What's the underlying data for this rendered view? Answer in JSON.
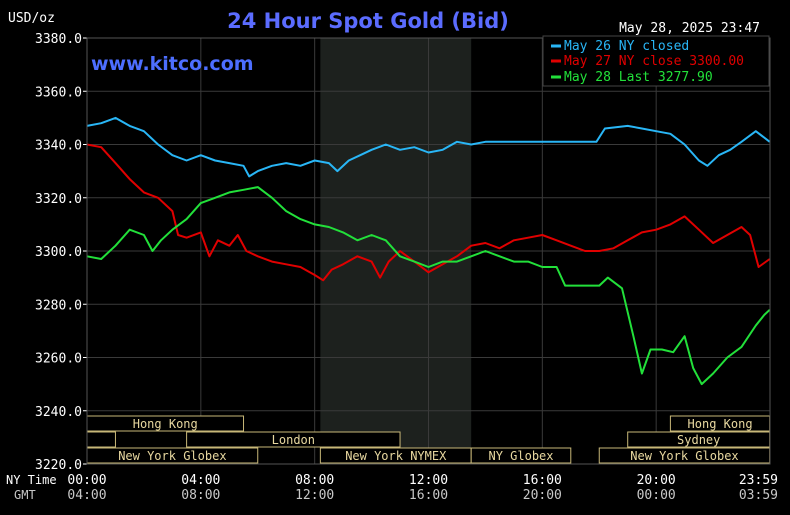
{
  "colors": {
    "background": "#000000",
    "nyhours": "#1d211e",
    "grid": "#3a3a3a",
    "axis_text": "#ffffff",
    "title": "#5b6cff",
    "brand": "#4d6eff",
    "may26": "#29b6f6",
    "may27": "#e00000",
    "may28": "#22e03a",
    "session_text": "#e8d8a0",
    "session_border": "#c8b878",
    "gmt_text": "#c8c8c8"
  },
  "header": {
    "unit": "USD/oz",
    "title": "24 Hour Spot Gold (Bid)",
    "timestamp": "May 28, 2025 23:47",
    "watermark": "www.kitco.com"
  },
  "axis": {
    "row1_label": "NY Time",
    "row2_label": "GMT",
    "ny_ticks": [
      "00:00",
      "04:00",
      "08:00",
      "12:00",
      "16:00",
      "20:00",
      "23:59"
    ],
    "gmt_ticks": [
      "04:00",
      "08:00",
      "12:00",
      "16:00",
      "20:00",
      "00:00",
      "03:59"
    ]
  },
  "sessions": [
    {
      "name": "Hong Kong",
      "start": 0,
      "end": 5.5,
      "row": 0
    },
    {
      "name": "Hong Kong",
      "start": 20.5,
      "end": 23.99,
      "row": 0
    },
    {
      "name": "",
      "start": 0,
      "end": 1.0,
      "row": 1
    },
    {
      "name": "London",
      "start": 3.5,
      "end": 11.0,
      "row": 1
    },
    {
      "name": "Sydney",
      "start": 19.0,
      "end": 23.99,
      "row": 1
    },
    {
      "name": "New York Globex",
      "start": 0,
      "end": 6.0,
      "row": 2
    },
    {
      "name": "New York NYMEX",
      "start": 8.2,
      "end": 13.5,
      "row": 2
    },
    {
      "name": "NY Globex",
      "start": 13.5,
      "end": 17.0,
      "row": 2
    },
    {
      "name": "New York Globex",
      "start": 18.0,
      "end": 23.99,
      "row": 2
    }
  ],
  "chart_data": {
    "type": "line",
    "title": "24 Hour Spot Gold (Bid)",
    "ylabel": "USD/oz",
    "xlabel": "NY Time",
    "ylim": [
      3220,
      3380
    ],
    "xlim": [
      0,
      24
    ],
    "y_ticks": [
      "3220.0",
      "3240.0",
      "3260.0",
      "3280.0",
      "3300.0",
      "3320.0",
      "3340.0",
      "3360.0",
      "3380.0"
    ],
    "grid": true,
    "legend_position": "top-right",
    "ny_hours_shaded": [
      8.2,
      13.5
    ],
    "series": [
      {
        "name": "May 26 NY closed",
        "points": [
          [
            0,
            3347
          ],
          [
            0.5,
            3348
          ],
          [
            1.0,
            3350
          ],
          [
            1.5,
            3347
          ],
          [
            2.0,
            3345
          ],
          [
            2.5,
            3340
          ],
          [
            3.0,
            3336
          ],
          [
            3.5,
            3334
          ],
          [
            4.0,
            3336
          ],
          [
            4.5,
            3334
          ],
          [
            5.0,
            3333
          ],
          [
            5.5,
            3332
          ],
          [
            5.7,
            3328
          ],
          [
            6.0,
            3330
          ],
          [
            6.5,
            3332
          ],
          [
            7.0,
            3333
          ],
          [
            7.5,
            3332
          ],
          [
            8.0,
            3334
          ],
          [
            8.5,
            3333
          ],
          [
            8.8,
            3330
          ],
          [
            9.2,
            3334
          ],
          [
            9.6,
            3336
          ],
          [
            10.0,
            3338
          ],
          [
            10.5,
            3340
          ],
          [
            11.0,
            3338
          ],
          [
            11.5,
            3339
          ],
          [
            12.0,
            3337
          ],
          [
            12.5,
            3338
          ],
          [
            13.0,
            3341
          ],
          [
            13.5,
            3340
          ],
          [
            14.0,
            3341
          ],
          [
            15.0,
            3341
          ],
          [
            16.0,
            3341
          ],
          [
            17.0,
            3341
          ],
          [
            17.9,
            3341
          ],
          [
            18.2,
            3346
          ],
          [
            19.0,
            3347
          ],
          [
            19.5,
            3346
          ],
          [
            20.0,
            3345
          ],
          [
            20.5,
            3344
          ],
          [
            21.0,
            3340
          ],
          [
            21.5,
            3334
          ],
          [
            21.8,
            3332
          ],
          [
            22.2,
            3336
          ],
          [
            22.6,
            3338
          ],
          [
            23.0,
            3341
          ],
          [
            23.5,
            3345
          ],
          [
            23.99,
            3341
          ]
        ]
      },
      {
        "name": "May 27 NY close 3300.00",
        "points": [
          [
            0,
            3340
          ],
          [
            0.5,
            3339
          ],
          [
            1.0,
            3333
          ],
          [
            1.5,
            3327
          ],
          [
            2.0,
            3322
          ],
          [
            2.5,
            3320
          ],
          [
            3.0,
            3315
          ],
          [
            3.2,
            3306
          ],
          [
            3.5,
            3305
          ],
          [
            4.0,
            3307
          ],
          [
            4.3,
            3298
          ],
          [
            4.6,
            3304
          ],
          [
            5.0,
            3302
          ],
          [
            5.3,
            3306
          ],
          [
            5.6,
            3300
          ],
          [
            6.0,
            3298
          ],
          [
            6.5,
            3296
          ],
          [
            7.0,
            3295
          ],
          [
            7.5,
            3294
          ],
          [
            8.0,
            3291
          ],
          [
            8.3,
            3289
          ],
          [
            8.6,
            3293
          ],
          [
            9.0,
            3295
          ],
          [
            9.5,
            3298
          ],
          [
            10.0,
            3296
          ],
          [
            10.3,
            3290
          ],
          [
            10.6,
            3296
          ],
          [
            11.0,
            3300
          ],
          [
            11.5,
            3296
          ],
          [
            12.0,
            3292
          ],
          [
            12.5,
            3295
          ],
          [
            13.0,
            3298
          ],
          [
            13.5,
            3302
          ],
          [
            14.0,
            3303
          ],
          [
            14.5,
            3301
          ],
          [
            15.0,
            3304
          ],
          [
            15.5,
            3305
          ],
          [
            16.0,
            3306
          ],
          [
            16.5,
            3304
          ],
          [
            17.0,
            3302
          ],
          [
            17.5,
            3300
          ],
          [
            18.0,
            3300
          ],
          [
            18.5,
            3301
          ],
          [
            19.0,
            3304
          ],
          [
            19.5,
            3307
          ],
          [
            20.0,
            3308
          ],
          [
            20.5,
            3310
          ],
          [
            21.0,
            3313
          ],
          [
            21.5,
            3308
          ],
          [
            22.0,
            3303
          ],
          [
            22.5,
            3306
          ],
          [
            23.0,
            3309
          ],
          [
            23.3,
            3306
          ],
          [
            23.6,
            3294
          ],
          [
            23.99,
            3297
          ]
        ]
      },
      {
        "name": "May 28 Last 3277.90",
        "points": [
          [
            0,
            3298
          ],
          [
            0.5,
            3297
          ],
          [
            1.0,
            3302
          ],
          [
            1.5,
            3308
          ],
          [
            2.0,
            3306
          ],
          [
            2.3,
            3300
          ],
          [
            2.6,
            3304
          ],
          [
            3.0,
            3308
          ],
          [
            3.5,
            3312
          ],
          [
            4.0,
            3318
          ],
          [
            4.5,
            3320
          ],
          [
            5.0,
            3322
          ],
          [
            5.5,
            3323
          ],
          [
            6.0,
            3324
          ],
          [
            6.5,
            3320
          ],
          [
            7.0,
            3315
          ],
          [
            7.5,
            3312
          ],
          [
            8.0,
            3310
          ],
          [
            8.5,
            3309
          ],
          [
            9.0,
            3307
          ],
          [
            9.5,
            3304
          ],
          [
            10.0,
            3306
          ],
          [
            10.5,
            3304
          ],
          [
            11.0,
            3298
          ],
          [
            11.5,
            3296
          ],
          [
            12.0,
            3294
          ],
          [
            12.5,
            3296
          ],
          [
            13.0,
            3296
          ],
          [
            13.5,
            3298
          ],
          [
            14.0,
            3300
          ],
          [
            14.5,
            3298
          ],
          [
            15.0,
            3296
          ],
          [
            15.5,
            3296
          ],
          [
            16.0,
            3294
          ],
          [
            16.5,
            3294
          ],
          [
            16.8,
            3287
          ],
          [
            17.5,
            3287
          ],
          [
            18.0,
            3287
          ],
          [
            18.3,
            3290
          ],
          [
            18.8,
            3286
          ],
          [
            19.2,
            3268
          ],
          [
            19.5,
            3254
          ],
          [
            19.8,
            3263
          ],
          [
            20.2,
            3263
          ],
          [
            20.6,
            3262
          ],
          [
            21.0,
            3268
          ],
          [
            21.3,
            3256
          ],
          [
            21.6,
            3250
          ],
          [
            22.0,
            3254
          ],
          [
            22.5,
            3260
          ],
          [
            23.0,
            3264
          ],
          [
            23.5,
            3272
          ],
          [
            23.8,
            3276
          ],
          [
            23.99,
            3277.9
          ]
        ]
      }
    ]
  }
}
